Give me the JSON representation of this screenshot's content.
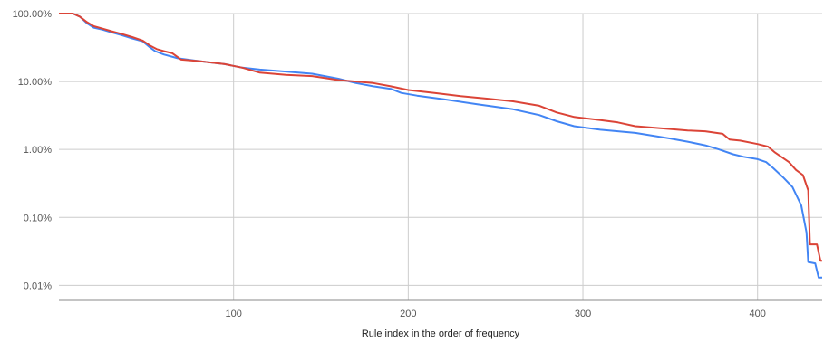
{
  "chart_data": {
    "type": "line",
    "title": "",
    "xlabel": "Rule index in the order of frequency",
    "ylabel": "",
    "xlim": [
      0,
      437
    ],
    "ylim": [
      0.006,
      100
    ],
    "y_scale": "log",
    "grid": true,
    "legend": "none",
    "x_ticks": [
      {
        "value": 100,
        "label": "100"
      },
      {
        "value": 200,
        "label": "200"
      },
      {
        "value": 300,
        "label": "300"
      },
      {
        "value": 400,
        "label": "400"
      }
    ],
    "y_ticks": [
      {
        "value": 100,
        "label": "100.00%"
      },
      {
        "value": 10,
        "label": "10.00%"
      },
      {
        "value": 1,
        "label": "1.00%"
      },
      {
        "value": 0.1,
        "label": "0.10%"
      },
      {
        "value": 0.01,
        "label": "0.01%"
      }
    ],
    "series": [
      {
        "color": "#4285F4",
        "points": [
          [
            0,
            100
          ],
          [
            8,
            100
          ],
          [
            12,
            90
          ],
          [
            16,
            72
          ],
          [
            20,
            62
          ],
          [
            25,
            58
          ],
          [
            30,
            53
          ],
          [
            36,
            48
          ],
          [
            42,
            43
          ],
          [
            48,
            39
          ],
          [
            52,
            32
          ],
          [
            55,
            28
          ],
          [
            60,
            25
          ],
          [
            68,
            22
          ],
          [
            80,
            20
          ],
          [
            95,
            18
          ],
          [
            105,
            16
          ],
          [
            115,
            15
          ],
          [
            130,
            14
          ],
          [
            145,
            13
          ],
          [
            160,
            11
          ],
          [
            170,
            9.5
          ],
          [
            180,
            8.5
          ],
          [
            190,
            7.8
          ],
          [
            196,
            6.8
          ],
          [
            205,
            6.2
          ],
          [
            220,
            5.5
          ],
          [
            240,
            4.6
          ],
          [
            260,
            3.9
          ],
          [
            275,
            3.2
          ],
          [
            285,
            2.6
          ],
          [
            295,
            2.2
          ],
          [
            310,
            1.95
          ],
          [
            330,
            1.75
          ],
          [
            350,
            1.45
          ],
          [
            360,
            1.3
          ],
          [
            370,
            1.15
          ],
          [
            378,
            1.0
          ],
          [
            386,
            0.85
          ],
          [
            392,
            0.78
          ],
          [
            400,
            0.72
          ],
          [
            405,
            0.65
          ],
          [
            409,
            0.53
          ],
          [
            415,
            0.38
          ],
          [
            420,
            0.28
          ],
          [
            425,
            0.15
          ],
          [
            428,
            0.06
          ],
          [
            429,
            0.022
          ],
          [
            433,
            0.021
          ],
          [
            435,
            0.013
          ],
          [
            437,
            0.013
          ]
        ]
      },
      {
        "color": "#DB4437",
        "points": [
          [
            0,
            100
          ],
          [
            8,
            100
          ],
          [
            12,
            90
          ],
          [
            16,
            75
          ],
          [
            20,
            65
          ],
          [
            25,
            60
          ],
          [
            30,
            55
          ],
          [
            36,
            50
          ],
          [
            42,
            45
          ],
          [
            48,
            40
          ],
          [
            52,
            34
          ],
          [
            56,
            30
          ],
          [
            60,
            28
          ],
          [
            65,
            26
          ],
          [
            70,
            21
          ],
          [
            80,
            20
          ],
          [
            95,
            18
          ],
          [
            105,
            16
          ],
          [
            115,
            13.5
          ],
          [
            130,
            12.5
          ],
          [
            145,
            12
          ],
          [
            160,
            10.5
          ],
          [
            170,
            10
          ],
          [
            180,
            9.5
          ],
          [
            190,
            8.5
          ],
          [
            200,
            7.5
          ],
          [
            215,
            6.8
          ],
          [
            230,
            6.1
          ],
          [
            245,
            5.6
          ],
          [
            260,
            5.1
          ],
          [
            275,
            4.4
          ],
          [
            285,
            3.5
          ],
          [
            295,
            3.0
          ],
          [
            310,
            2.7
          ],
          [
            320,
            2.5
          ],
          [
            330,
            2.2
          ],
          [
            350,
            2.0
          ],
          [
            360,
            1.9
          ],
          [
            370,
            1.85
          ],
          [
            380,
            1.7
          ],
          [
            384,
            1.4
          ],
          [
            390,
            1.35
          ],
          [
            400,
            1.2
          ],
          [
            406,
            1.1
          ],
          [
            410,
            0.9
          ],
          [
            418,
            0.65
          ],
          [
            422,
            0.5
          ],
          [
            426,
            0.42
          ],
          [
            429,
            0.25
          ],
          [
            430,
            0.04
          ],
          [
            434,
            0.04
          ],
          [
            436,
            0.023
          ],
          [
            437,
            0.023
          ]
        ]
      }
    ]
  }
}
